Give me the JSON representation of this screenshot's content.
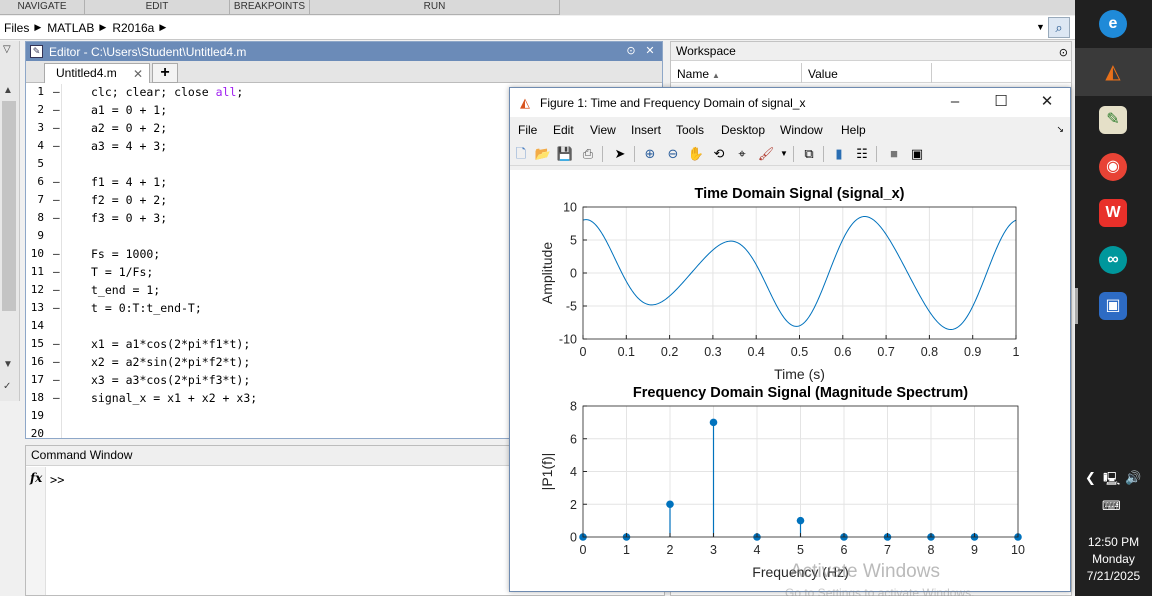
{
  "toolstrip": {
    "sections": [
      "NAVIGATE",
      "EDIT",
      "BREAKPOINTS",
      "RUN"
    ]
  },
  "address": {
    "segments": [
      "Files",
      "MATLAB",
      "R2016a"
    ]
  },
  "editor": {
    "title": "Editor - C:\\Users\\Student\\Untitled4.m",
    "tab": "Untitled4.m",
    "lines": [
      {
        "n": "1",
        "d": "–",
        "t": "clc; clear; close ",
        "kw": "all",
        "tail": ";"
      },
      {
        "n": "2",
        "d": "–",
        "t": "a1 = 0 + 1;"
      },
      {
        "n": "3",
        "d": "–",
        "t": "a2 = 0 + 2;"
      },
      {
        "n": "4",
        "d": "–",
        "t": "a3 = 4 + 3;"
      },
      {
        "n": "5",
        "d": "",
        "t": ""
      },
      {
        "n": "6",
        "d": "–",
        "t": "f1 = 4 + 1;"
      },
      {
        "n": "7",
        "d": "–",
        "t": "f2 = 0 + 2;"
      },
      {
        "n": "8",
        "d": "–",
        "t": "f3 = 0 + 3;"
      },
      {
        "n": "9",
        "d": "",
        "t": ""
      },
      {
        "n": "10",
        "d": "–",
        "t": "Fs = 1000;"
      },
      {
        "n": "11",
        "d": "–",
        "t": "T = 1/Fs;"
      },
      {
        "n": "12",
        "d": "–",
        "t": "t_end = 1;"
      },
      {
        "n": "13",
        "d": "–",
        "t": "t = 0:T:t_end-T;"
      },
      {
        "n": "14",
        "d": "",
        "t": ""
      },
      {
        "n": "15",
        "d": "–",
        "t": "x1 = a1*cos(2*pi*f1*t);"
      },
      {
        "n": "16",
        "d": "–",
        "t": "x2 = a2*sin(2*pi*f2*t);"
      },
      {
        "n": "17",
        "d": "–",
        "t": "x3 = a3*cos(2*pi*f3*t);"
      },
      {
        "n": "18",
        "d": "–",
        "t": "signal_x = x1 + x2 + x3;"
      },
      {
        "n": "19",
        "d": "",
        "t": ""
      },
      {
        "n": "20",
        "d": "",
        "t": ""
      }
    ]
  },
  "command_window": {
    "title": "Command Window",
    "fx": "fx",
    "prompt": ">>"
  },
  "workspace": {
    "title": "Workspace",
    "col_name": "Name",
    "col_value": "Value"
  },
  "figure": {
    "title": "Figure 1: Time and Frequency Domain of signal_x",
    "menus": [
      "File",
      "Edit",
      "View",
      "Insert",
      "Tools",
      "Desktop",
      "Window",
      "Help"
    ]
  },
  "chart_data": [
    {
      "type": "line",
      "title": "Time Domain Signal (signal_x)",
      "xlabel": "Time (s)",
      "ylabel": "Amplitude",
      "xlim": [
        0,
        1
      ],
      "ylim": [
        -10,
        10
      ],
      "xticks": [
        "0",
        "0.1",
        "0.2",
        "0.3",
        "0.4",
        "0.5",
        "0.6",
        "0.7",
        "0.8",
        "0.9",
        "1"
      ],
      "yticks": [
        "10",
        "5",
        "0",
        "-5",
        "-10"
      ],
      "grid": true,
      "signal": {
        "amplitudes": [
          1,
          2,
          7
        ],
        "frequencies_hz": [
          5,
          2,
          3
        ],
        "functions": [
          "cos",
          "sin",
          "cos"
        ]
      },
      "color": "#0072BD"
    },
    {
      "type": "stem",
      "title": "Frequency Domain Signal (Magnitude Spectrum)",
      "xlabel": "Frequency (Hz)",
      "ylabel": "|P1(f)|",
      "xlim": [
        0,
        10
      ],
      "ylim": [
        0,
        8
      ],
      "xticks": [
        "0",
        "1",
        "2",
        "3",
        "4",
        "5",
        "6",
        "7",
        "8",
        "9",
        "10"
      ],
      "yticks": [
        "8",
        "6",
        "4",
        "2",
        "0"
      ],
      "grid": true,
      "x": [
        0,
        1,
        2,
        3,
        4,
        5,
        6,
        7,
        8,
        9,
        10
      ],
      "values": [
        0,
        0,
        2,
        7,
        0,
        1,
        0,
        0,
        0,
        0,
        0
      ],
      "color": "#0072BD"
    }
  ],
  "watermark": {
    "line1": "Activate Windows",
    "line2": "Go to Settings to activate Windows."
  },
  "clock": {
    "time": "12:50 PM",
    "day": "Monday",
    "date": "7/21/2025"
  }
}
